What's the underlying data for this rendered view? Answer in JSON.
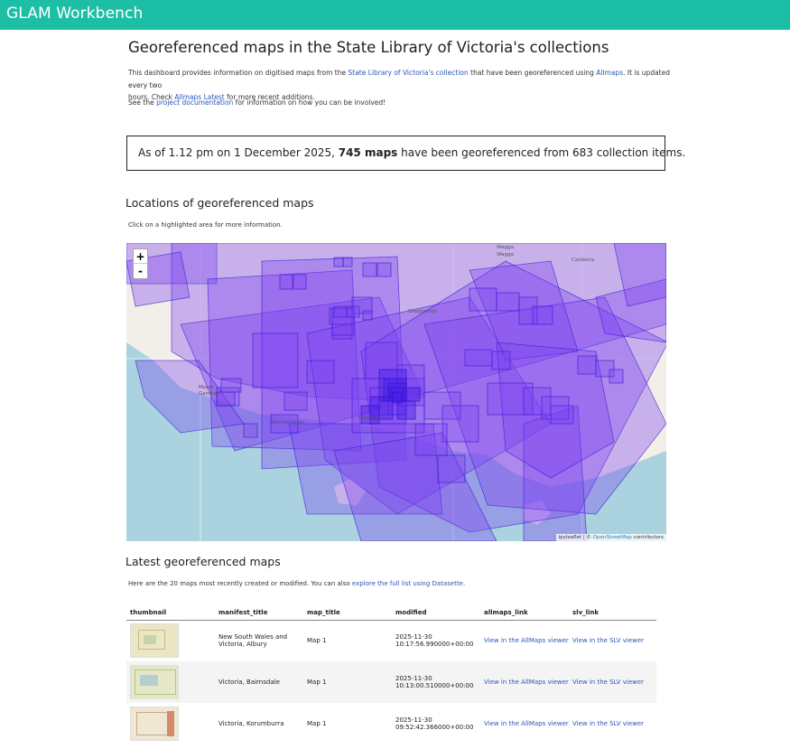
{
  "header": {
    "brand": "GLAM Workbench"
  },
  "page": {
    "title": "Georeferenced maps in the State Library of Victoria's collections",
    "intro_pre": "This dashboard provides information on digitised maps from the ",
    "intro_link1": "State Library of Victoria's collection",
    "intro_mid": " that have been georeferenced using ",
    "intro_link2": "Allmaps",
    "intro_post": ". It is updated every two",
    "intro_line2_pre": "hours. Check ",
    "intro_line2_link": "Allmaps Latest",
    "intro_line2_post": " for more recent additions.",
    "see_pre": "See the ",
    "see_link": "project documentation",
    "see_post": " for information on how you can be involved!"
  },
  "stats": {
    "prefix": "As of 1.12 pm on 1 December 2025, ",
    "count_bold": "745 maps",
    "suffix": " have been georeferenced from 683 collection items."
  },
  "map_section": {
    "heading": "Locations of georeferenced maps",
    "hint": "Click on a highlighted area for more information.",
    "zoom_in": "+",
    "zoom_out": "-",
    "attribution_pre": "ipyleaflet | © ",
    "attribution_link": "OpenStreetMap",
    "attribution_post": " contributors",
    "labels": {
      "wagga": "Wagga",
      "wagga2": "Wagga",
      "canberra": "Canberra",
      "shepparton": "Shepparton",
      "mount": "Mount",
      "gambier": "Gambier",
      "warrnambool": "Warrnambool",
      "geelong": "Geelong"
    }
  },
  "latest": {
    "heading": "Latest georeferenced maps",
    "intro_pre": "Here are the 20 maps most recently created or modified. You can also ",
    "intro_link": "explore the full list using Datasette",
    "intro_post": ".",
    "columns": [
      "thumbnail",
      "manifest_title",
      "map_title",
      "modified",
      "allmaps_link",
      "slv_link"
    ],
    "rows": [
      {
        "manifest_title_1": "New South Wales and",
        "manifest_title_2": "Victoria, Albury",
        "map_title": "Map 1",
        "modified_1": "2025-11-30",
        "modified_2": "10:17:56.990000+00:00",
        "allmaps_link": "View in the AllMaps viewer",
        "slv_link": "View in the SLV viewer"
      },
      {
        "manifest_title_1": "Victoria, Bairnsdale",
        "manifest_title_2": "",
        "map_title": "Map 1",
        "modified_1": "2025-11-30",
        "modified_2": "10:13:00.510000+00:00",
        "allmaps_link": "View in the AllMaps viewer",
        "slv_link": "View in the SLV viewer"
      },
      {
        "manifest_title_1": "Victoria, Korumburra",
        "manifest_title_2": "",
        "map_title": "Map 1",
        "modified_1": "2025-11-30",
        "modified_2": "09:52:42.366000+00:00",
        "allmaps_link": "View in the AllMaps viewer",
        "slv_link": "View in the SLV viewer"
      }
    ]
  },
  "colors": {
    "topbar": "#1cbfa5",
    "link": "#2a57b8",
    "polygon_fill": "#7b3ff2",
    "polygon_stroke": "#3b1fd6",
    "sea": "#aad3df",
    "land": "#f2efe9"
  }
}
